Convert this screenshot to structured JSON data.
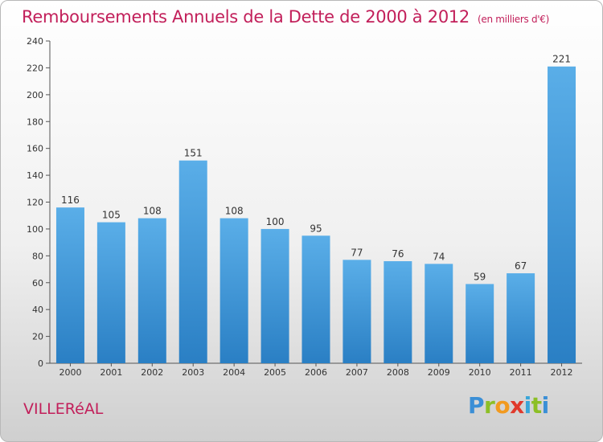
{
  "title": "Remboursements Annuels de la Dette de 2000 à 2012",
  "subtitle": "(en milliers d'€)",
  "commune": "VILLERéAL",
  "logo": {
    "p": "P",
    "r": "r",
    "o": "o",
    "x": "x",
    "i1": "i",
    "t": "t",
    "i2": "i"
  },
  "colors": {
    "bar_top": "#5aaee8",
    "bar_bottom": "#2a7fc4",
    "title": "#c21f5a"
  },
  "chart_data": {
    "type": "bar",
    "categories": [
      "2000",
      "2001",
      "2002",
      "2003",
      "2004",
      "2005",
      "2006",
      "2007",
      "2008",
      "2009",
      "2010",
      "2011",
      "2012"
    ],
    "values": [
      116,
      105,
      108,
      151,
      108,
      100,
      95,
      77,
      76,
      74,
      59,
      67,
      221
    ],
    "ylim": [
      0,
      240
    ],
    "yticks": [
      0,
      20,
      40,
      60,
      80,
      100,
      120,
      140,
      160,
      180,
      200,
      220,
      240
    ],
    "grid": false,
    "xlabel": "",
    "ylabel": ""
  }
}
